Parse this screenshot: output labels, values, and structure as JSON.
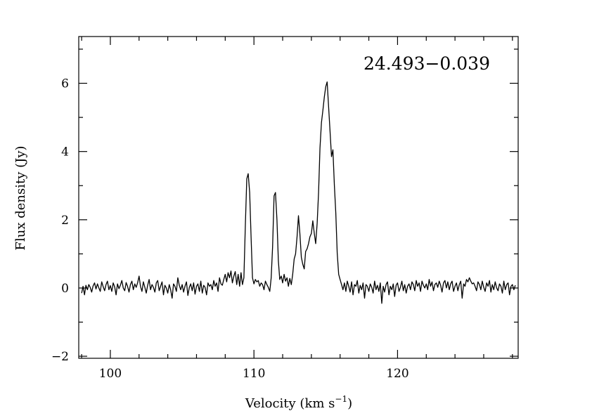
{
  "chart_data": {
    "type": "line",
    "annotation": "24.493−0.039",
    "xlabel": "Velocity (km s",
    "xlabel_sup": "−1",
    "xlabel_end": ")",
    "ylabel": "Flux density (Jy)",
    "xlim": [
      97.8,
      128.4
    ],
    "ylim": [
      -2.06,
      7.37
    ],
    "x_ticks_major": [
      100,
      110,
      120
    ],
    "x_tick_labels": [
      "100",
      "110",
      "120"
    ],
    "x_minor_step": 2,
    "y_ticks_major": [
      -2,
      0,
      2,
      4,
      6
    ],
    "y_tick_labels": [
      "−2",
      "0",
      "2",
      "4",
      "6"
    ],
    "y_minor_step": 1,
    "grid": false,
    "line_color": "#000000",
    "series": [
      {
        "x_start": 98.0,
        "x_step": 0.1,
        "y": [
          -0.15,
          0.05,
          -0.2,
          0.08,
          -0.05,
          0.1,
          0.02,
          -0.12,
          0.06,
          0.15,
          -0.03,
          0.12,
          0.0,
          -0.1,
          0.18,
          0.04,
          -0.08,
          0.1,
          0.2,
          -0.05,
          0.07,
          -0.1,
          0.15,
          0.03,
          -0.2,
          0.12,
          -0.02,
          0.08,
          0.22,
          0.0,
          -0.08,
          0.16,
          0.05,
          -0.12,
          0.1,
          0.2,
          -0.05,
          0.12,
          0.02,
          0.15,
          0.35,
          0.05,
          -0.1,
          0.18,
          0.02,
          -0.15,
          0.08,
          0.25,
          -0.05,
          0.1,
          0.02,
          -0.12,
          0.15,
          0.22,
          -0.08,
          0.05,
          0.18,
          -0.2,
          0.08,
          0.0,
          -0.15,
          0.1,
          -0.05,
          -0.3,
          0.12,
          0.05,
          -0.1,
          0.3,
          0.08,
          -0.05,
          0.1,
          -0.12,
          0.05,
          0.18,
          -0.22,
          0.02,
          0.12,
          -0.08,
          0.15,
          -0.18,
          0.05,
          0.12,
          -0.1,
          0.2,
          -0.15,
          0.08,
          0.02,
          -0.2,
          0.15,
          0.05,
          0.1,
          -0.05,
          0.22,
          0.05,
          0.15,
          -0.1,
          0.3,
          0.12,
          0.08,
          0.25,
          0.4,
          0.18,
          0.45,
          0.3,
          0.5,
          0.15,
          0.35,
          0.48,
          0.1,
          0.4,
          0.05,
          0.45,
          0.1,
          0.3,
          1.8,
          3.2,
          3.35,
          2.8,
          1.5,
          0.3,
          0.12,
          0.25,
          0.18,
          0.22,
          0.05,
          0.15,
          0.1,
          -0.05,
          0.2,
          0.1,
          0.02,
          -0.1,
          0.3,
          1.2,
          2.7,
          2.8,
          2.0,
          0.8,
          0.25,
          0.35,
          0.15,
          0.4,
          0.2,
          0.3,
          0.05,
          0.28,
          0.1,
          0.4,
          0.85,
          1.0,
          1.5,
          2.12,
          1.6,
          0.9,
          0.7,
          0.56,
          1.07,
          1.15,
          1.3,
          1.5,
          1.6,
          1.97,
          1.6,
          1.3,
          1.9,
          2.8,
          4.1,
          4.85,
          5.2,
          5.6,
          5.9,
          6.04,
          5.3,
          4.6,
          3.85,
          4.05,
          3.0,
          2.2,
          1.03,
          0.4,
          0.25,
          0.1,
          -0.05,
          0.15,
          -0.1,
          0.2,
          0.05,
          -0.12,
          0.18,
          -0.2,
          0.1,
          0.05,
          0.22,
          -0.15,
          0.08,
          -0.05,
          0.15,
          -0.3,
          0.1,
          0.05,
          -0.1,
          0.12,
          0.02,
          -0.15,
          0.2,
          -0.05,
          0.08,
          -0.1,
          0.15,
          -0.45,
          0.05,
          -0.12,
          0.1,
          0.18,
          -0.2,
          0.05,
          -0.05,
          0.12,
          -0.25,
          0.08,
          0.15,
          -0.1,
          0.02,
          0.2,
          -0.08,
          0.1,
          -0.15,
          0.05,
          0.12,
          -0.05,
          0.18,
          0.1,
          -0.08,
          0.22,
          0.05,
          0.15,
          -0.1,
          0.2,
          0.08,
          0.0,
          0.12,
          -0.05,
          0.25,
          0.05,
          0.18,
          -0.08,
          0.1,
          0.15,
          0.02,
          0.2,
          0.08,
          -0.12,
          0.15,
          0.22,
          0.0,
          0.18,
          -0.05,
          0.12,
          0.2,
          -0.1,
          0.05,
          0.15,
          -0.08,
          0.1,
          0.2,
          -0.3,
          0.12,
          0.05,
          0.25,
          0.18,
          0.3,
          0.2,
          0.12,
          0.15,
          0.05,
          -0.08,
          0.18,
          0.1,
          -0.05,
          0.2,
          0.02,
          -0.1,
          0.15,
          0.05,
          0.22,
          -0.12,
          0.1,
          -0.05,
          0.18,
          0.0,
          -0.08,
          0.12,
          0.05,
          -0.15,
          0.2,
          -0.05,
          0.1,
          0.15,
          -0.2,
          0.05,
          0.1,
          -0.05,
          0.08
        ]
      }
    ]
  }
}
